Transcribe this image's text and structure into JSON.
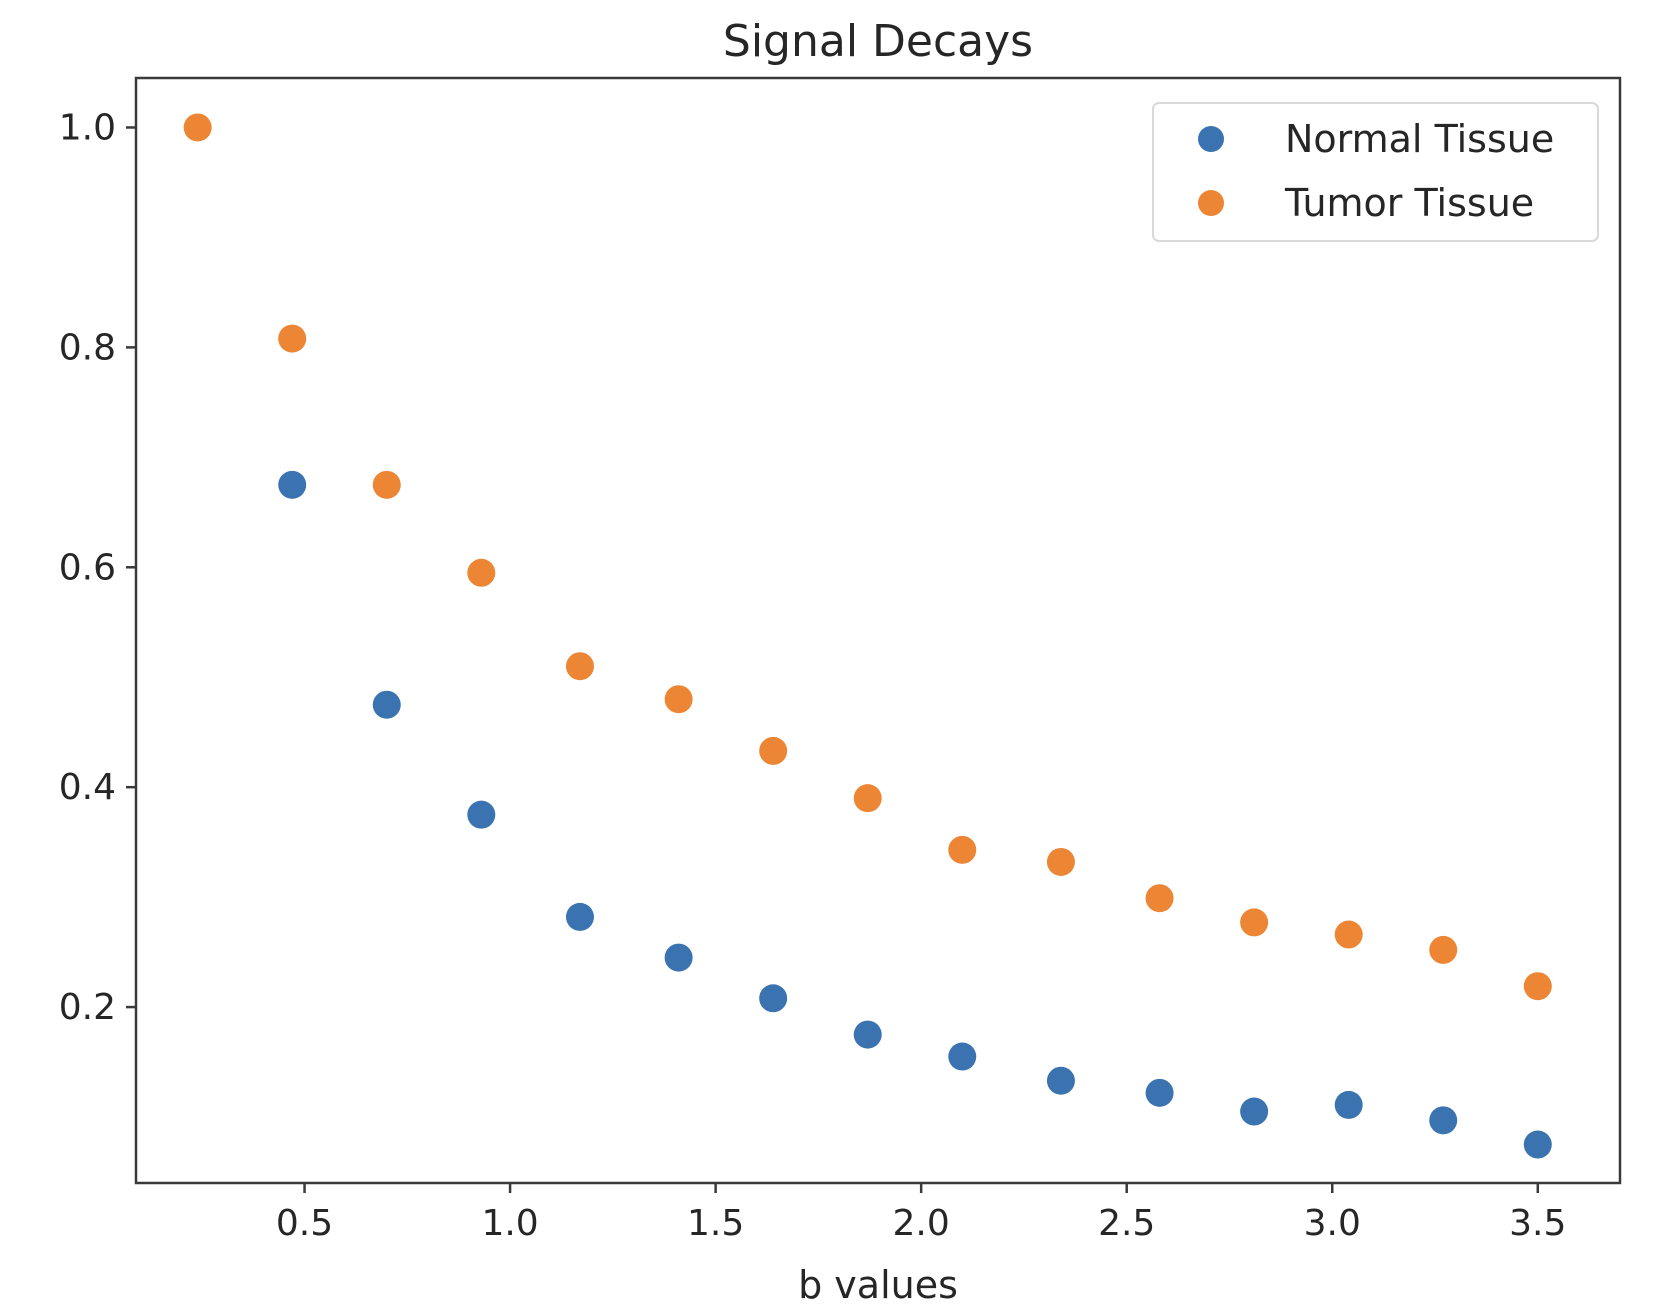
{
  "chart_data": {
    "type": "scatter",
    "title": "Signal Decays",
    "xlabel": "b values",
    "ylabel": "",
    "xlim": [
      0.09,
      3.7
    ],
    "ylim": [
      0.04,
      1.045
    ],
    "xticks": [
      0.5,
      1.0,
      1.5,
      2.0,
      2.5,
      3.0,
      3.5
    ],
    "xtick_labels": [
      "0.5",
      "1.0",
      "1.5",
      "2.0",
      "2.5",
      "3.0",
      "3.5"
    ],
    "yticks": [
      0.2,
      0.4,
      0.6,
      0.8,
      1.0
    ],
    "ytick_labels": [
      "0.2",
      "0.4",
      "0.6",
      "0.8",
      "1.0"
    ],
    "grid": false,
    "legend_position": "top-right",
    "series": [
      {
        "name": "Normal Tissue",
        "color": "#3a73b0",
        "x": [
          0.47,
          0.7,
          0.93,
          1.17,
          1.41,
          1.64,
          1.87,
          2.1,
          2.34,
          2.58,
          2.81,
          3.04,
          3.27,
          3.5
        ],
        "y": [
          0.675,
          0.475,
          0.375,
          0.282,
          0.245,
          0.208,
          0.175,
          0.155,
          0.133,
          0.122,
          0.105,
          0.111,
          0.097,
          0.075
        ]
      },
      {
        "name": "Tumor Tissue",
        "color": "#ec8634",
        "x": [
          0.24,
          0.47,
          0.7,
          0.93,
          1.17,
          1.41,
          1.64,
          1.87,
          2.1,
          2.34,
          2.58,
          2.81,
          3.04,
          3.27,
          3.5
        ],
        "y": [
          1.0,
          0.808,
          0.675,
          0.595,
          0.51,
          0.48,
          0.433,
          0.39,
          0.343,
          0.332,
          0.299,
          0.277,
          0.266,
          0.252,
          0.219
        ]
      }
    ]
  }
}
